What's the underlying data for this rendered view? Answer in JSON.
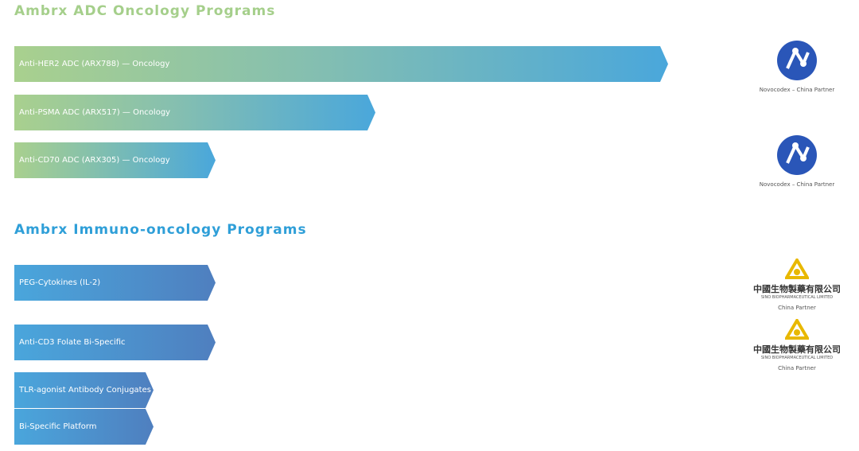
{
  "sections": [
    {
      "title": "Ambrx ADC Oncology Programs",
      "programs": [
        {
          "label": "Anti-HER2 ADC (ARX788) — Oncology"
        },
        {
          "label": "Anti-PSMA ADC (ARX517) — Oncology"
        },
        {
          "label": "Anti-CD70 ADC (ARX305) — Oncology"
        }
      ]
    },
    {
      "title": "Ambrx Immuno-oncology Programs",
      "programs": [
        {
          "label": "PEG-Cytokines (IL-2)"
        },
        {
          "label": "Anti-CD3 Folate Bi-Specific"
        },
        {
          "label": "TLR-agonist Antibody Conjugates"
        },
        {
          "label": "Bi-Specific Platform"
        }
      ]
    }
  ],
  "partners": [
    {
      "caption": "Novocodex – China Partner"
    },
    {
      "caption": "Novocodex – China Partner"
    },
    {
      "name": "中國生物製藥有限公司",
      "subname": "SINO BIOPHARMACEUTICAL LIMITED",
      "caption": "China Partner"
    },
    {
      "name": "中國生物製藥有限公司",
      "subname": "SINO BIOPHARMACEUTICAL LIMITED",
      "caption": "China Partner"
    }
  ]
}
